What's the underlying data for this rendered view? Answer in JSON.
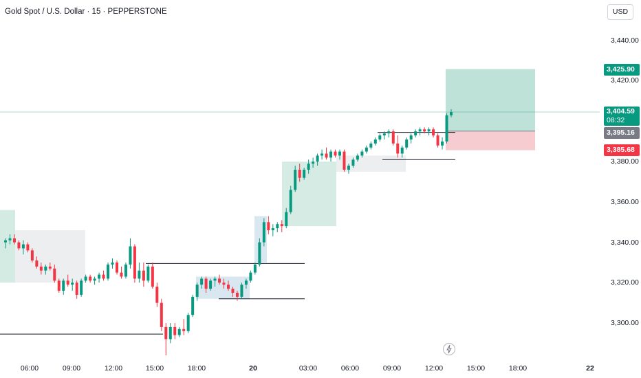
{
  "header": {
    "symbol_title": "Gold Spot / U.S. Dollar · 15 · PEPPERSTONE"
  },
  "price_axis": {
    "currency": "USD",
    "ticks": [
      "3,440.00",
      "3,420.00",
      "3,380.00",
      "3,360.00",
      "3,340.00",
      "3,320.00",
      "3,300.00"
    ],
    "target_label": "3,425.90",
    "current_label": "3,404.59",
    "countdown": "08:32",
    "entry_label": "3,395.16",
    "stop_label": "3,385.68"
  },
  "time_axis": {
    "ticks": [
      {
        "label": "06:00",
        "bold": false
      },
      {
        "label": "09:00",
        "bold": false
      },
      {
        "label": "12:00",
        "bold": false
      },
      {
        "label": "15:00",
        "bold": false
      },
      {
        "label": "18:00",
        "bold": false
      },
      {
        "label": "20",
        "bold": true
      },
      {
        "label": "03:00",
        "bold": false
      },
      {
        "label": "06:00",
        "bold": false
      },
      {
        "label": "09:00",
        "bold": false
      },
      {
        "label": "12:00",
        "bold": false
      },
      {
        "label": "15:00",
        "bold": false
      },
      {
        "label": "18:00",
        "bold": false
      },
      {
        "label": "22",
        "bold": true
      }
    ]
  },
  "icons": {
    "flash": "lightning-icon"
  },
  "colors": {
    "up": "#089981",
    "down": "#f23645",
    "profit_zone": "#b7dfd4",
    "loss_zone": "#f5c7cc",
    "grey_zone": "#e6e7ea",
    "blue_zone": "#cfe1ee",
    "line": "#131722"
  },
  "chart_data": {
    "type": "candlestick",
    "title": "Gold Spot / U.S. Dollar · 15 · PEPPERSTONE",
    "ylim": [
      3283,
      3455
    ],
    "y_ticks": [
      3300,
      3320,
      3340,
      3360,
      3380,
      3420,
      3440
    ],
    "current_price": 3404.59,
    "position": {
      "target": 3425.9,
      "entry": 3395.16,
      "stop": 3385.68
    },
    "candles": [
      [
        3340,
        3342,
        3337,
        3341
      ],
      [
        3341,
        3344,
        3339,
        3342
      ],
      [
        3342,
        3344,
        3339,
        3340
      ],
      [
        3340,
        3341,
        3336,
        3337
      ],
      [
        3337,
        3341,
        3334,
        3339
      ],
      [
        3339,
        3340,
        3335,
        3336
      ],
      [
        3336,
        3337,
        3330,
        3331
      ],
      [
        3331,
        3333,
        3327,
        3328
      ],
      [
        3328,
        3330,
        3324,
        3326
      ],
      [
        3326,
        3329,
        3324,
        3328
      ],
      [
        3328,
        3330,
        3326,
        3327
      ],
      [
        3327,
        3329,
        3320,
        3321
      ],
      [
        3321,
        3322,
        3315,
        3316
      ],
      [
        3316,
        3322,
        3314,
        3321
      ],
      [
        3321,
        3324,
        3318,
        3319
      ],
      [
        3319,
        3322,
        3316,
        3320
      ],
      [
        3320,
        3321,
        3312,
        3314
      ],
      [
        3314,
        3322,
        3313,
        3321
      ],
      [
        3321,
        3324,
        3320,
        3323
      ],
      [
        3323,
        3324,
        3320,
        3321
      ],
      [
        3321,
        3323,
        3319,
        3322
      ],
      [
        3322,
        3325,
        3320,
        3324
      ],
      [
        3324,
        3326,
        3321,
        3322
      ],
      [
        3322,
        3330,
        3321,
        3329
      ],
      [
        3329,
        3332,
        3327,
        3330
      ],
      [
        3330,
        3331,
        3324,
        3325
      ],
      [
        3325,
        3328,
        3322,
        3323
      ],
      [
        3323,
        3330,
        3322,
        3329
      ],
      [
        3329,
        3342,
        3327,
        3338
      ],
      [
        3338,
        3339,
        3320,
        3322
      ],
      [
        3322,
        3330,
        3320,
        3326
      ],
      [
        3326,
        3330,
        3318,
        3321
      ],
      [
        3321,
        3329,
        3320,
        3328
      ],
      [
        3328,
        3330,
        3317,
        3318
      ],
      [
        3318,
        3320,
        3308,
        3310
      ],
      [
        3310,
        3312,
        3296,
        3298
      ],
      [
        3298,
        3300,
        3284,
        3292
      ],
      [
        3292,
        3300,
        3290,
        3298
      ],
      [
        3298,
        3300,
        3292,
        3294
      ],
      [
        3294,
        3298,
        3293,
        3297
      ],
      [
        3297,
        3302,
        3294,
        3296
      ],
      [
        3296,
        3305,
        3295,
        3304
      ],
      [
        3304,
        3314,
        3303,
        3313
      ],
      [
        3313,
        3320,
        3311,
        3319
      ],
      [
        3319,
        3323,
        3317,
        3322
      ],
      [
        3322,
        3323,
        3315,
        3317
      ],
      [
        3317,
        3322,
        3316,
        3321
      ],
      [
        3321,
        3323,
        3318,
        3322
      ],
      [
        3322,
        3324,
        3319,
        3320
      ],
      [
        3320,
        3322,
        3317,
        3319
      ],
      [
        3319,
        3321,
        3316,
        3317
      ],
      [
        3317,
        3318,
        3313,
        3315
      ],
      [
        3315,
        3316,
        3311,
        3313
      ],
      [
        3313,
        3320,
        3312,
        3319
      ],
      [
        3319,
        3322,
        3317,
        3321
      ],
      [
        3321,
        3326,
        3320,
        3325
      ],
      [
        3325,
        3330,
        3324,
        3329
      ],
      [
        3329,
        3342,
        3328,
        3340
      ],
      [
        3340,
        3352,
        3338,
        3350
      ],
      [
        3350,
        3353,
        3344,
        3346
      ],
      [
        3346,
        3349,
        3343,
        3347
      ],
      [
        3347,
        3350,
        3345,
        3349
      ],
      [
        3349,
        3351,
        3345,
        3348
      ],
      [
        3348,
        3357,
        3347,
        3355
      ],
      [
        3355,
        3368,
        3354,
        3366
      ],
      [
        3366,
        3378,
        3365,
        3376
      ],
      [
        3376,
        3379,
        3370,
        3372
      ],
      [
        3372,
        3377,
        3371,
        3376
      ],
      [
        3376,
        3381,
        3374,
        3379
      ],
      [
        3379,
        3382,
        3377,
        3380
      ],
      [
        3380,
        3384,
        3378,
        3383
      ],
      [
        3383,
        3386,
        3381,
        3384
      ],
      [
        3384,
        3387,
        3381,
        3382
      ],
      [
        3382,
        3386,
        3380,
        3385
      ],
      [
        3385,
        3386,
        3382,
        3383
      ],
      [
        3383,
        3386,
        3381,
        3385
      ],
      [
        3385,
        3386,
        3375,
        3376
      ],
      [
        3376,
        3379,
        3374,
        3378
      ],
      [
        3378,
        3382,
        3377,
        3381
      ],
      [
        3381,
        3384,
        3380,
        3383
      ],
      [
        3383,
        3386,
        3382,
        3385
      ],
      [
        3385,
        3388,
        3384,
        3387
      ],
      [
        3387,
        3390,
        3386,
        3389
      ],
      [
        3389,
        3392,
        3388,
        3391
      ],
      [
        3391,
        3394,
        3390,
        3393
      ],
      [
        3393,
        3395,
        3391,
        3394
      ],
      [
        3394,
        3396,
        3392,
        3395
      ],
      [
        3395,
        3396,
        3388,
        3389
      ],
      [
        3389,
        3393,
        3382,
        3384
      ],
      [
        3384,
        3388,
        3382,
        3387
      ],
      [
        3387,
        3392,
        3386,
        3391
      ],
      [
        3391,
        3394,
        3389,
        3393
      ],
      [
        3393,
        3396,
        3392,
        3395
      ],
      [
        3395,
        3397,
        3393,
        3396
      ],
      [
        3396,
        3397,
        3394,
        3395
      ],
      [
        3395,
        3397,
        3393,
        3396
      ],
      [
        3396,
        3397,
        3392,
        3393
      ],
      [
        3393,
        3394,
        3387,
        3388
      ],
      [
        3388,
        3392,
        3386,
        3390
      ],
      [
        3390,
        3404,
        3389,
        3403
      ],
      [
        3403,
        3406,
        3402,
        3404.59
      ]
    ]
  }
}
